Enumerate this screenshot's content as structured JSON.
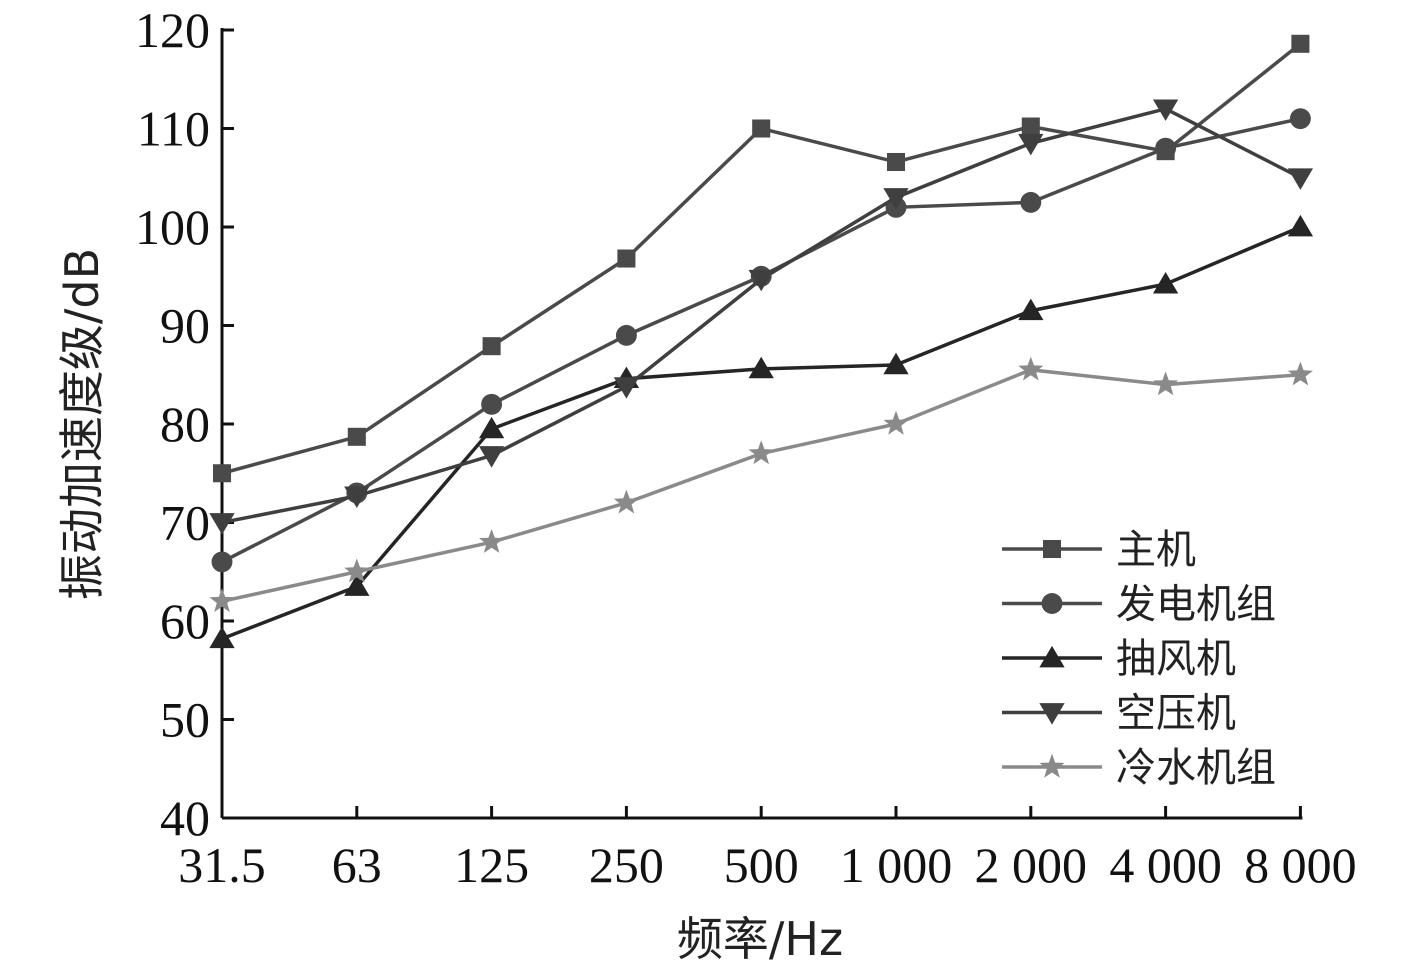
{
  "chart_data": {
    "type": "line",
    "categories": [
      "31.5",
      "63",
      "125",
      "250",
      "500",
      "1 000",
      "2 000",
      "4 000",
      "8 000"
    ],
    "xlabel": "频率/Hz",
    "ylabel": "振动加速度级/dB",
    "ylim": [
      40,
      120
    ],
    "yticks": [
      40,
      50,
      60,
      70,
      80,
      90,
      100,
      110,
      120
    ],
    "grid": false,
    "legend_position": "bottom-right",
    "series": [
      {
        "name": "主机",
        "marker": "square",
        "color": "#4a4a4a",
        "values": [
          75,
          78.7,
          87.9,
          96.8,
          110,
          106.6,
          110.2,
          107.7,
          118.6
        ]
      },
      {
        "name": "发电机组",
        "marker": "circle",
        "color": "#4a4a4a",
        "values": [
          66,
          73,
          82,
          89,
          95,
          102,
          102.5,
          108,
          111
        ]
      },
      {
        "name": "抽风机",
        "marker": "triangle-up",
        "color": "#252525",
        "values": [
          58.2,
          63.5,
          79.5,
          84.6,
          85.6,
          86,
          91.5,
          94.2,
          100
        ]
      },
      {
        "name": "空压机",
        "marker": "triangle-down",
        "color": "#3f3f3f",
        "values": [
          70,
          72.7,
          76.8,
          83.8,
          94.7,
          103,
          108.5,
          112,
          105
        ]
      },
      {
        "name": "冷水机组",
        "marker": "star",
        "color": "#8a8a8a",
        "values": [
          62,
          65,
          68,
          72,
          77,
          80,
          85.5,
          84,
          85
        ]
      }
    ]
  }
}
